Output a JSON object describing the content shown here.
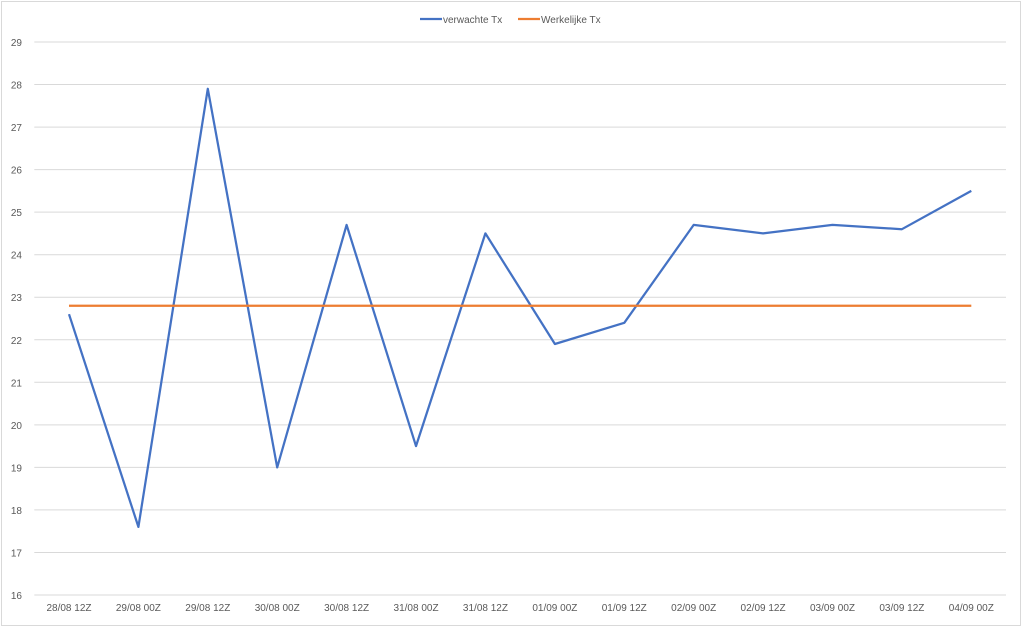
{
  "chart_data": {
    "type": "line",
    "title": "",
    "xlabel": "",
    "ylabel": "",
    "categories": [
      "28/08 12Z",
      "29/08 00Z",
      "29/08 12Z",
      "30/08 00Z",
      "30/08 12Z",
      "31/08 00Z",
      "31/08 12Z",
      "01/09 00Z",
      "01/09 12Z",
      "02/09 00Z",
      "02/09 12Z",
      "03/09 00Z",
      "03/09 12Z",
      "04/09 00Z"
    ],
    "ylim": [
      16,
      29
    ],
    "yticks": [
      16,
      17,
      18,
      19,
      20,
      21,
      22,
      23,
      24,
      25,
      26,
      27,
      28,
      29
    ],
    "grid": true,
    "legend_position": "top",
    "series": [
      {
        "name": "verwachte Tx",
        "color": "#4472c4",
        "values": [
          22.6,
          17.6,
          27.9,
          19.0,
          24.7,
          19.5,
          24.5,
          21.9,
          22.4,
          24.7,
          24.5,
          24.7,
          24.6,
          25.5
        ]
      },
      {
        "name": "Werkelijke Tx",
        "color": "#ed7d31",
        "values": [
          22.8,
          22.8,
          22.8,
          22.8,
          22.8,
          22.8,
          22.8,
          22.8,
          22.8,
          22.8,
          22.8,
          22.8,
          22.8,
          22.8
        ]
      }
    ]
  }
}
